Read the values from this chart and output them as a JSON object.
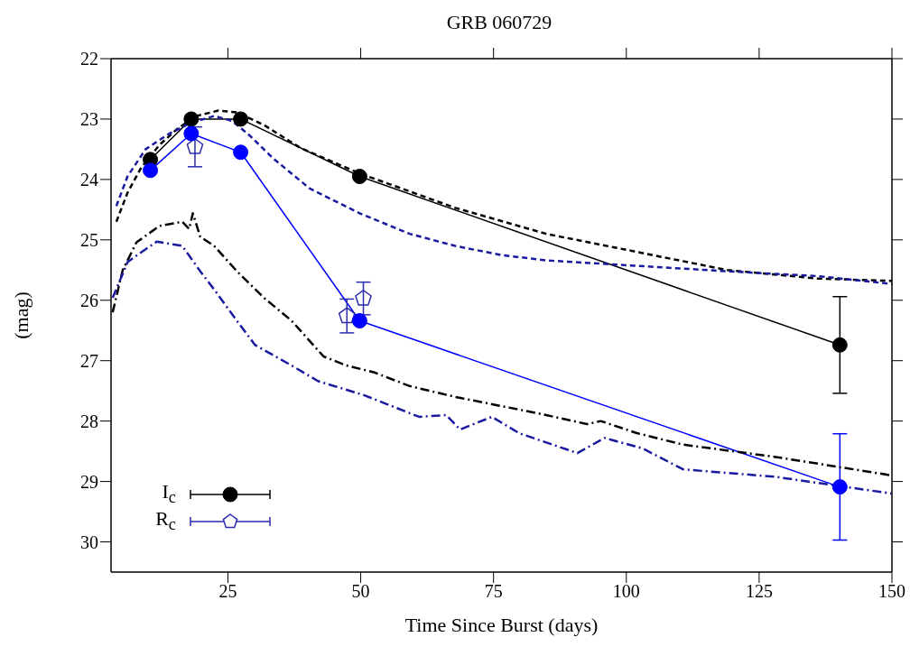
{
  "chart_data": {
    "type": "line",
    "title": "GRB 060729",
    "xlabel": "Time Since Burst (days)",
    "ylabel": "(mag)",
    "xlim": [
      3,
      150
    ],
    "xticks": [
      25,
      50,
      75,
      100,
      125,
      150
    ],
    "ylim": [
      30.5,
      22
    ],
    "yticks": [
      22,
      23,
      24,
      25,
      26,
      27,
      28,
      29,
      30
    ],
    "grid": false,
    "legend": "bottom left",
    "series": [
      {
        "name": "I$_{c}$",
        "color": "#000000",
        "marker": "circle",
        "line_style": "solid",
        "x": [
          10.4,
          18.1,
          27.4,
          49.8,
          140.2
        ],
        "values": [
          23.67,
          23.0,
          23.0,
          23.95,
          26.74
        ],
        "errors": [
          null,
          null,
          null,
          null,
          0.8
        ]
      },
      {
        "color": "#0000ff",
        "marker": "circle",
        "line_style": "solid",
        "x": [
          10.4,
          18.1,
          27.4,
          49.8,
          140.2
        ],
        "values": [
          23.85,
          23.24,
          23.55,
          26.34,
          29.09
        ],
        "errors": [
          null,
          null,
          null,
          null,
          0.88
        ]
      },
      {
        "name": "R$_{c}$",
        "type": "scatter",
        "color": "#2b2bb0",
        "x": [
          18.8,
          47.4,
          50.5
        ],
        "values": [
          23.46,
          26.26,
          25.97
        ],
        "errors": [
          0.33,
          0.28,
          0.27
        ]
      },
      {
        "color": "#000000",
        "marker": "none",
        "line_style": "dashed",
        "x": [
          4,
          6.1,
          8.7,
          12.1,
          15.5,
          19,
          23.2,
          26.7,
          31.8,
          38.7,
          49.8,
          67.8,
          84.9,
          102,
          119,
          136,
          150
        ],
        "values": [
          24.7,
          24.22,
          23.8,
          23.43,
          23.16,
          22.95,
          22.86,
          22.89,
          23.1,
          23.48,
          23.9,
          24.47,
          24.9,
          25.2,
          25.5,
          25.64,
          25.68
        ]
      },
      {
        "color": "#1a1aa0",
        "marker": "none",
        "line_style": "dashed",
        "x": [
          4,
          6.1,
          9.5,
          13.8,
          18.1,
          22.4,
          25.8,
          29.2,
          33.5,
          40.4,
          49.8,
          59.2,
          67.8,
          76.4,
          84.9,
          102,
          119,
          136,
          150
        ],
        "values": [
          24.44,
          23.95,
          23.5,
          23.25,
          23.06,
          22.95,
          23.03,
          23.28,
          23.65,
          24.15,
          24.56,
          24.9,
          25.1,
          25.25,
          25.34,
          25.43,
          25.52,
          25.6,
          25.73
        ]
      },
      {
        "color": "#000000",
        "marker": "none",
        "line_style": "dashdot",
        "x": [
          3.3,
          5.2,
          7.8,
          12.1,
          16.4,
          17.7,
          18.4,
          19.8,
          22.4,
          26.7,
          31.8,
          37,
          43,
          47.3,
          52.4,
          59.2,
          67.8,
          76.4,
          84.9,
          92.6,
          95.2,
          102,
          110.7,
          127.8,
          150
        ],
        "values": [
          26.2,
          25.5,
          25.04,
          24.77,
          24.7,
          24.82,
          24.56,
          24.95,
          25.1,
          25.52,
          25.96,
          26.34,
          26.93,
          27.08,
          27.19,
          27.42,
          27.6,
          27.75,
          27.9,
          28.05,
          28.0,
          28.2,
          28.39,
          28.59,
          28.9
        ]
      },
      {
        "color": "#1a1aa0",
        "marker": "none",
        "line_style": "dashdot",
        "x": [
          3.3,
          6.1,
          7.8,
          11.6,
          16.4,
          19.8,
          22.4,
          26.7,
          30.1,
          37,
          42,
          50.6,
          61,
          66.1,
          68.7,
          74.7,
          79.8,
          90.8,
          95.9,
          103,
          110.7,
          127.8,
          150
        ],
        "values": [
          25.96,
          25.37,
          25.26,
          25.03,
          25.1,
          25.52,
          25.82,
          26.34,
          26.74,
          27.08,
          27.34,
          27.57,
          27.93,
          27.9,
          28.14,
          27.93,
          28.2,
          28.53,
          28.28,
          28.45,
          28.8,
          28.92,
          29.2
        ]
      }
    ]
  }
}
